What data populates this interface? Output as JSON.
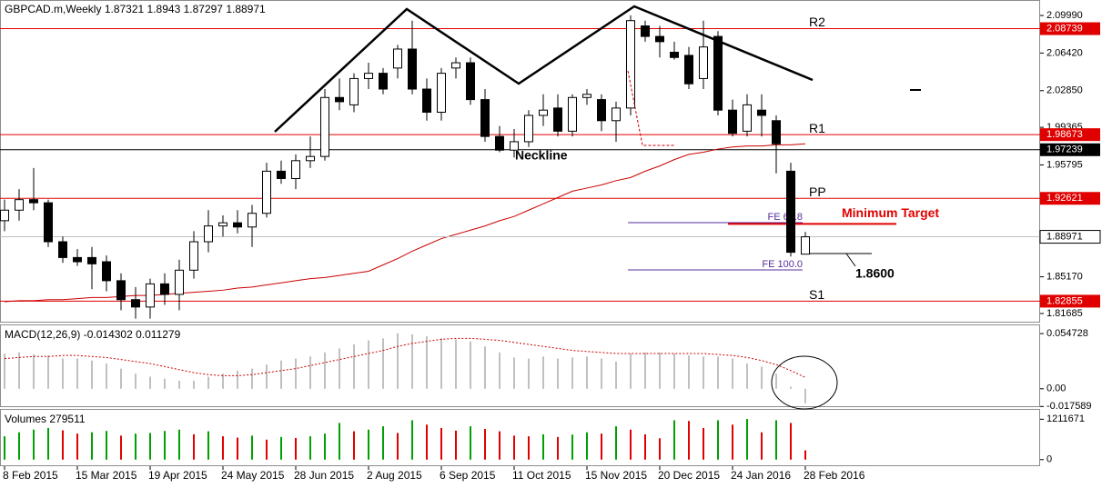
{
  "chart_data": {
    "type": "candlestick",
    "symbol": "GBPCAD.m,Weekly",
    "candles": {
      "open": [
        1.905,
        1.915,
        1.925,
        1.922,
        1.885,
        1.87,
        1.87,
        1.866,
        1.848,
        1.83,
        1.823,
        1.845,
        1.835,
        1.858,
        1.885,
        1.9,
        1.903,
        1.899,
        1.912,
        1.952,
        1.945,
        1.962,
        1.966,
        2.022,
        2.015,
        2.04,
        2.045,
        2.05,
        2.068,
        2.03,
        2.008,
        2.05,
        2.055,
        2.02,
        1.985,
        1.972,
        1.98,
        2.005,
        2.012,
        1.99,
        2.022,
        2.02,
        2.0,
        2.012,
        2.09,
        2.08,
        2.065,
        2.062,
        2.04,
        2.08,
        2.01,
        1.99,
        2.01,
        2.0,
        1.952,
        1.87321
      ],
      "high": [
        1.925,
        1.935,
        1.955,
        1.925,
        1.89,
        1.878,
        1.88,
        1.872,
        1.855,
        1.842,
        1.85,
        1.855,
        1.868,
        1.895,
        1.915,
        1.91,
        1.915,
        1.92,
        1.96,
        1.962,
        1.968,
        1.985,
        2.03,
        2.04,
        2.045,
        2.055,
        2.05,
        2.072,
        2.095,
        2.04,
        2.05,
        2.06,
        2.06,
        2.03,
        1.995,
        1.992,
        2.01,
        2.025,
        2.025,
        2.025,
        2.03,
        2.025,
        2.018,
        2.1,
        2.095,
        2.09,
        2.075,
        2.07,
        2.095,
        2.085,
        2.02,
        2.025,
        2.025,
        2.005,
        1.96,
        1.8943
      ],
      "low": [
        1.895,
        1.905,
        1.915,
        1.88,
        1.865,
        1.862,
        1.84,
        1.838,
        1.82,
        1.812,
        1.812,
        1.825,
        1.82,
        1.85,
        1.875,
        1.89,
        1.893,
        1.88,
        1.908,
        1.94,
        1.935,
        1.955,
        1.962,
        2.01,
        2.008,
        2.03,
        2.025,
        2.04,
        2.025,
        2.0,
        2.0,
        2.04,
        2.015,
        1.98,
        1.97,
        1.965,
        1.975,
        1.995,
        1.985,
        1.985,
        2.015,
        1.99,
        1.98,
        2.005,
        2.075,
        2.06,
        2.058,
        2.03,
        2.03,
        2.005,
        1.985,
        1.985,
        1.985,
        1.95,
        1.871,
        1.87297
      ],
      "close": [
        1.915,
        1.925,
        1.922,
        1.885,
        1.87,
        1.866,
        1.864,
        1.848,
        1.83,
        1.823,
        1.845,
        1.835,
        1.858,
        1.885,
        1.9,
        1.903,
        1.899,
        1.912,
        1.952,
        1.945,
        1.962,
        1.966,
        2.022,
        2.018,
        2.04,
        2.045,
        2.03,
        2.068,
        2.03,
        2.008,
        2.045,
        2.055,
        2.02,
        1.985,
        1.972,
        1.98,
        2.005,
        2.01,
        1.99,
        2.022,
        2.025,
        2.0,
        2.012,
        2.095,
        2.08,
        2.075,
        2.06,
        2.035,
        2.07,
        2.01,
        1.988,
        2.015,
        2.005,
        1.978,
        1.875,
        1.88971
      ]
    },
    "ma": [
      1.828,
      1.829,
      1.829,
      1.83,
      1.83,
      1.831,
      1.832,
      1.832,
      1.833,
      1.834,
      1.834,
      1.835,
      1.836,
      1.837,
      1.838,
      1.839,
      1.841,
      1.842,
      1.844,
      1.846,
      1.848,
      1.85,
      1.851,
      1.853,
      1.855,
      1.857,
      1.863,
      1.869,
      1.876,
      1.882,
      1.888,
      1.892,
      1.896,
      1.9,
      1.905,
      1.909,
      1.915,
      1.921,
      1.927,
      1.933,
      1.936,
      1.939,
      1.943,
      1.946,
      1.952,
      1.957,
      1.963,
      1.968,
      1.97,
      1.973,
      1.975,
      1.976,
      1.976,
      1.977,
      1.977,
      1.978
    ],
    "ma_color": "#cc0000",
    "ylim": [
      1.8082,
      2.1146
    ],
    "yticks": [
      {
        "value": 2.0999,
        "label": "2.09990"
      },
      {
        "value": 2.0642,
        "label": "2.06420"
      },
      {
        "value": 2.0285,
        "label": "2.02850"
      },
      1.99365,
      1.95795,
      {
        "value": 1.8517,
        "label": "1.85170"
      },
      1.81685
    ],
    "levels": [
      {
        "label": "R2",
        "value": 2.08739,
        "color": "#e00000"
      },
      {
        "label": "R1",
        "value": 1.98673,
        "color": "#e00000"
      },
      {
        "label": "Neckline",
        "value": 1.97239,
        "color": "#000000"
      },
      {
        "label": "PP",
        "value": 1.92621,
        "color": "#e00000"
      },
      {
        "label": "S1",
        "value": 1.82855,
        "color": "#e00000"
      }
    ],
    "fibo": [
      {
        "label": "FE 61.8",
        "value": 1.9031
      },
      {
        "label": "FE 100.0",
        "value": 1.8583
      }
    ],
    "fibo_color": "#5a2d9c",
    "target": {
      "label": "Minimum Target",
      "value": 1.902,
      "color": "#e00000"
    },
    "annotation": "1.8600",
    "dates": [
      "8 Feb 2015",
      "15 Mar 2015",
      "19 Apr 2015",
      "24 May 2015",
      "28 Jun 2015",
      "2 Aug 2015",
      "6 Sep 2015",
      "11 Oct 2015",
      "15 Nov 2015",
      "20 Dec 2015",
      "24 Jan 2016",
      "28 Feb 2016"
    ],
    "macd": {
      "name": "MACD(12,26,9)",
      "hist": [
        0.035,
        0.036,
        0.034,
        0.033,
        0.03,
        0.03,
        0.028,
        0.025,
        0.02,
        0.015,
        0.012,
        0.01,
        0.008,
        0.008,
        0.012,
        0.015,
        0.018,
        0.02,
        0.024,
        0.028,
        0.03,
        0.032,
        0.036,
        0.04,
        0.044,
        0.048,
        0.05,
        0.055,
        0.054,
        0.052,
        0.05,
        0.049,
        0.047,
        0.042,
        0.036,
        0.031,
        0.03,
        0.032,
        0.03,
        0.031,
        0.032,
        0.03,
        0.027,
        0.035,
        0.036,
        0.036,
        0.035,
        0.033,
        0.032,
        0.032,
        0.03,
        0.025,
        0.022,
        0.015,
        0.002,
        -0.014302
      ],
      "signal": [
        0.03,
        0.031,
        0.032,
        0.032,
        0.033,
        0.033,
        0.032,
        0.031,
        0.029,
        0.027,
        0.025,
        0.022,
        0.019,
        0.016,
        0.014,
        0.013,
        0.013,
        0.014,
        0.016,
        0.018,
        0.02,
        0.023,
        0.026,
        0.029,
        0.032,
        0.035,
        0.038,
        0.042,
        0.045,
        0.047,
        0.049,
        0.05,
        0.05,
        0.049,
        0.048,
        0.046,
        0.044,
        0.042,
        0.04,
        0.038,
        0.037,
        0.036,
        0.035,
        0.035,
        0.035,
        0.035,
        0.035,
        0.035,
        0.035,
        0.034,
        0.033,
        0.031,
        0.028,
        0.024,
        0.018,
        0.011279
      ],
      "hist_color": "#c0c0c0",
      "signal_color": "#cc0000",
      "ylim": [
        -0.0182,
        0.0629
      ],
      "yticks": [
        0.054728,
        {
          "value": 0,
          "label": "0.00"
        },
        -0.017589
      ]
    },
    "volume": {
      "name": "Volumes",
      "values": [
        700000,
        820000,
        900000,
        950000,
        880000,
        780000,
        820000,
        860000,
        720000,
        780000,
        800000,
        860000,
        900000,
        760000,
        850000,
        700000,
        660000,
        720000,
        600000,
        680000,
        650000,
        700000,
        780000,
        1100000,
        850000,
        900000,
        1000000,
        800000,
        1180000,
        1050000,
        950000,
        870000,
        1000000,
        920000,
        850000,
        720000,
        700000,
        760000,
        680000,
        750000,
        820000,
        780000,
        1000000,
        900000,
        760000,
        640000,
        1180000,
        1160000,
        950000,
        1180000,
        1050000,
        1220000,
        820000,
        1180000,
        1100000,
        279511
      ],
      "up_color": "#00a000",
      "down_color": "#e00000",
      "ylim": [
        -197246,
        1493451
      ],
      "yticks": [
        1211671,
        0
      ]
    }
  }
}
